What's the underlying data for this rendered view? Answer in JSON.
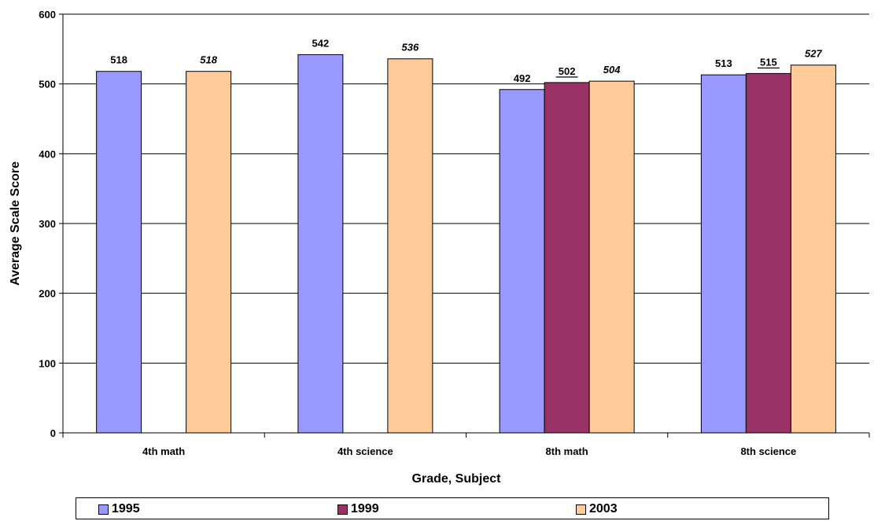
{
  "chart_data": {
    "type": "bar",
    "categories": [
      "4th math",
      "4th science",
      "8th math",
      "8th science"
    ],
    "series": [
      {
        "name": "1995",
        "color": "#9999ff",
        "values": [
          518,
          542,
          492,
          513
        ],
        "label_style": "plain"
      },
      {
        "name": "1999",
        "color": "#993366",
        "values": [
          null,
          null,
          502,
          515
        ],
        "label_style": "underline"
      },
      {
        "name": "2003",
        "color": "#ffcc99",
        "values": [
          518,
          536,
          504,
          527
        ],
        "label_style": "italic"
      }
    ],
    "xlabel": "Grade, Subject",
    "ylabel": "Average Scale Score",
    "ylim": [
      0,
      600
    ],
    "yticks": [
      0,
      100,
      200,
      300,
      400,
      500,
      600
    ],
    "grid": true,
    "legend_position": "bottom"
  }
}
